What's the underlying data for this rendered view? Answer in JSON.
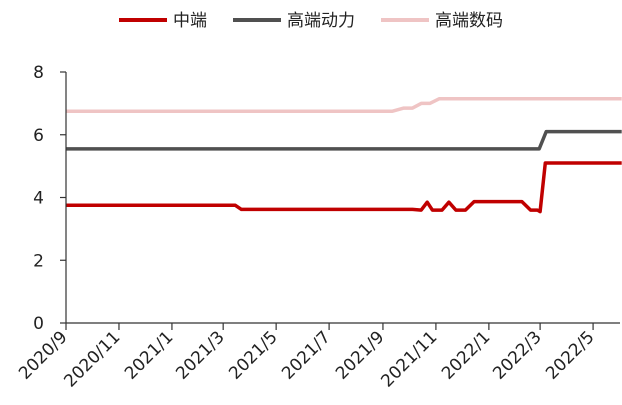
{
  "chart_data": {
    "type": "line",
    "title": "",
    "xlabel": "",
    "ylabel": "",
    "ylim": [
      0,
      8
    ],
    "xlim": [
      "2020-09",
      "2022-06"
    ],
    "yticks": [
      "0",
      "2",
      "4",
      "6",
      "8"
    ],
    "xticks": [
      {
        "date": "2020-09",
        "label": "2020/9"
      },
      {
        "date": "2020-11",
        "label": "2020/11"
      },
      {
        "date": "2021-01",
        "label": "2021/1"
      },
      {
        "date": "2021-03",
        "label": "2021/3"
      },
      {
        "date": "2021-05",
        "label": "2021/5"
      },
      {
        "date": "2021-07",
        "label": "2021/7"
      },
      {
        "date": "2021-09",
        "label": "2021/9"
      },
      {
        "date": "2021-11",
        "label": "2021/11"
      },
      {
        "date": "2022-01",
        "label": "2022/1"
      },
      {
        "date": "2022-03",
        "label": "2022/3"
      },
      {
        "date": "2022-05",
        "label": "2022/5"
      }
    ],
    "grid": false,
    "legend_position": "top",
    "series": [
      {
        "name": "中端",
        "color": "#c00000",
        "points": [
          {
            "x": "2020-09-01",
            "y": 3.75
          },
          {
            "x": "2021-03-15",
            "y": 3.75
          },
          {
            "x": "2021-03-22",
            "y": 3.62
          },
          {
            "x": "2021-10-05",
            "y": 3.62
          },
          {
            "x": "2021-10-15",
            "y": 3.6
          },
          {
            "x": "2021-10-22",
            "y": 3.85
          },
          {
            "x": "2021-10-28",
            "y": 3.6
          },
          {
            "x": "2021-11-08",
            "y": 3.6
          },
          {
            "x": "2021-11-16",
            "y": 3.85
          },
          {
            "x": "2021-11-24",
            "y": 3.6
          },
          {
            "x": "2021-12-05",
            "y": 3.6
          },
          {
            "x": "2021-12-15",
            "y": 3.87
          },
          {
            "x": "2022-02-08",
            "y": 3.87
          },
          {
            "x": "2022-02-18",
            "y": 3.6
          },
          {
            "x": "2022-02-26",
            "y": 3.6
          },
          {
            "x": "2022-03-01",
            "y": 3.55
          },
          {
            "x": "2022-03-07",
            "y": 5.1
          },
          {
            "x": "2022-03-15",
            "y": 5.1
          },
          {
            "x": "2022-06-03",
            "y": 5.1
          }
        ]
      },
      {
        "name": "高端动力",
        "color": "#505050",
        "points": [
          {
            "x": "2020-09-01",
            "y": 5.55
          },
          {
            "x": "2022-02-28",
            "y": 5.55
          },
          {
            "x": "2022-03-08",
            "y": 6.1
          },
          {
            "x": "2022-06-03",
            "y": 6.1
          }
        ]
      },
      {
        "name": "高端数码",
        "color": "#efc4c4",
        "points": [
          {
            "x": "2020-09-01",
            "y": 6.75
          },
          {
            "x": "2021-09-12",
            "y": 6.75
          },
          {
            "x": "2021-09-25",
            "y": 6.85
          },
          {
            "x": "2021-10-05",
            "y": 6.85
          },
          {
            "x": "2021-10-15",
            "y": 7.0
          },
          {
            "x": "2021-10-25",
            "y": 7.0
          },
          {
            "x": "2021-11-05",
            "y": 7.15
          },
          {
            "x": "2022-06-03",
            "y": 7.15
          }
        ]
      }
    ]
  }
}
